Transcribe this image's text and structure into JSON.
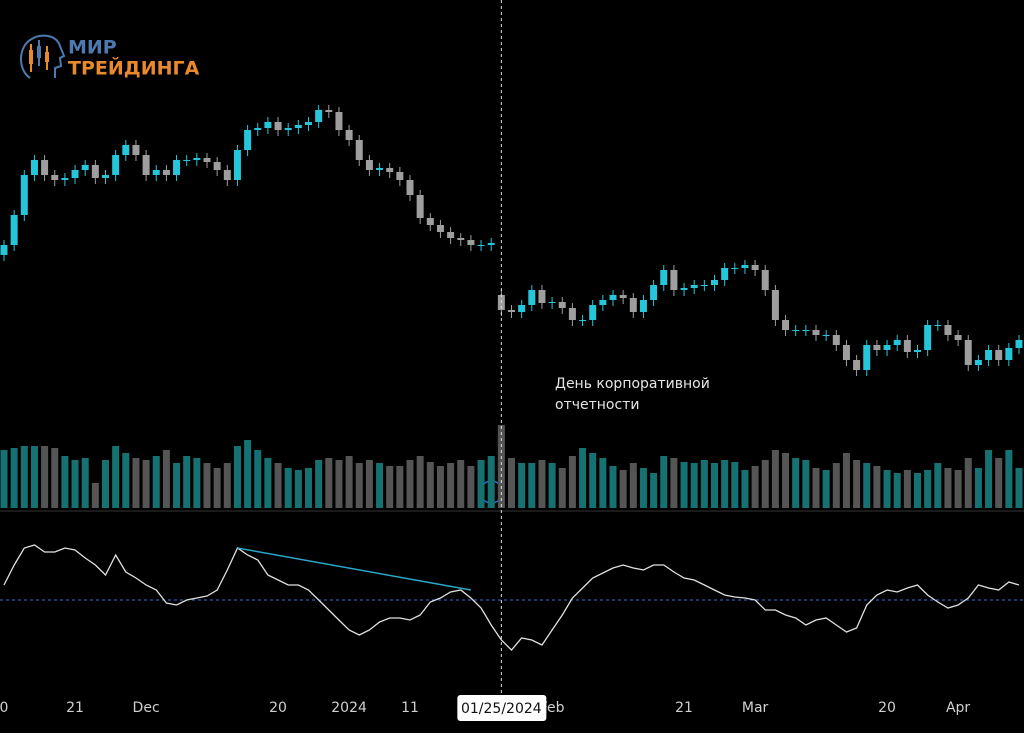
{
  "logo": {
    "line1": "МИР",
    "line2": "ТРЕЙДИНГА"
  },
  "chart_data": [
    {
      "type": "candlestick",
      "categories": [
        "0",
        null,
        null,
        null,
        null,
        null,
        null,
        "21",
        null,
        null,
        null,
        null,
        null,
        null,
        "Dec",
        null,
        null,
        null,
        null,
        null,
        null,
        null,
        null,
        null,
        null,
        null,
        null,
        "20",
        null,
        null,
        null,
        null,
        null,
        null,
        "2024",
        null,
        null,
        null,
        null,
        null,
        "11",
        null,
        null,
        null,
        null,
        null,
        null,
        null,
        null,
        null,
        null,
        null,
        null,
        null,
        "Feb",
        null,
        null,
        null,
        null,
        null,
        null,
        null,
        null,
        null,
        null,
        null,
        null,
        "21",
        null,
        null,
        null,
        null,
        null,
        null,
        "Mar",
        null,
        null,
        null,
        null,
        null,
        null,
        null,
        null,
        null,
        null,
        null,
        null,
        "20",
        null,
        null,
        null,
        null,
        null,
        null,
        "Apr",
        null,
        null,
        null,
        null,
        null,
        null
      ],
      "open": [
        205,
        215,
        245,
        285,
        300,
        285,
        280,
        282,
        290,
        295,
        282,
        285,
        305,
        315,
        305,
        285,
        290,
        285,
        300,
        300,
        302,
        298,
        290,
        280,
        310,
        330,
        332,
        338,
        330,
        332,
        335,
        338,
        350,
        348,
        330,
        320,
        300,
        290,
        292,
        288,
        280,
        265,
        242,
        235,
        228,
        222,
        220,
        215,
        215,
        165,
        150,
        148,
        155,
        170,
        157,
        158,
        152,
        140,
        140,
        155,
        160,
        165,
        162,
        148,
        160,
        175,
        190,
        170,
        172,
        175,
        175,
        180,
        192,
        192,
        195,
        190,
        170,
        140,
        130,
        130,
        130,
        125,
        125,
        115,
        100,
        90,
        115,
        110,
        115,
        120,
        108,
        110,
        135,
        135,
        125,
        120,
        95,
        100,
        110,
        100,
        112
      ],
      "high": [
        220,
        250,
        290,
        305,
        305,
        290,
        287,
        295,
        300,
        300,
        290,
        310,
        320,
        320,
        310,
        295,
        295,
        305,
        305,
        307,
        307,
        303,
        295,
        315,
        335,
        337,
        343,
        343,
        337,
        340,
        343,
        355,
        355,
        353,
        335,
        325,
        305,
        297,
        297,
        293,
        285,
        270,
        247,
        240,
        233,
        227,
        225,
        220,
        222,
        170,
        155,
        160,
        175,
        175,
        163,
        163,
        157,
        145,
        160,
        165,
        170,
        170,
        167,
        165,
        180,
        195,
        195,
        177,
        180,
        180,
        185,
        197,
        197,
        200,
        200,
        195,
        175,
        145,
        135,
        135,
        135,
        130,
        130,
        120,
        105,
        120,
        120,
        120,
        125,
        125,
        115,
        140,
        140,
        140,
        130,
        125,
        105,
        115,
        115,
        117,
        125
      ],
      "low": [
        199,
        209,
        239,
        279,
        279,
        274,
        274,
        276,
        284,
        276,
        276,
        279,
        299,
        299,
        279,
        279,
        279,
        279,
        294,
        294,
        292,
        284,
        274,
        274,
        304,
        324,
        326,
        324,
        324,
        326,
        329,
        332,
        342,
        324,
        314,
        294,
        284,
        284,
        282,
        274,
        259,
        236,
        229,
        222,
        216,
        214,
        209,
        209,
        209,
        144,
        142,
        142,
        149,
        151,
        151,
        146,
        134,
        134,
        134,
        149,
        154,
        156,
        142,
        142,
        154,
        169,
        164,
        164,
        166,
        169,
        169,
        174,
        186,
        186,
        184,
        164,
        134,
        124,
        124,
        124,
        119,
        119,
        109,
        94,
        84,
        84,
        104,
        104,
        109,
        102,
        102,
        104,
        129,
        119,
        114,
        89,
        89,
        94,
        94,
        94,
        106
      ],
      "close": [
        215,
        245,
        285,
        300,
        285,
        280,
        282,
        290,
        295,
        282,
        285,
        305,
        315,
        305,
        285,
        290,
        285,
        300,
        300,
        302,
        298,
        290,
        280,
        310,
        330,
        332,
        338,
        330,
        332,
        335,
        338,
        350,
        348,
        330,
        320,
        300,
        290,
        292,
        288,
        280,
        265,
        242,
        235,
        228,
        222,
        220,
        215,
        215,
        217,
        150,
        148,
        155,
        170,
        157,
        158,
        152,
        140,
        140,
        155,
        160,
        165,
        162,
        148,
        160,
        175,
        190,
        170,
        172,
        175,
        175,
        180,
        192,
        192,
        195,
        190,
        170,
        140,
        130,
        130,
        130,
        125,
        125,
        115,
        100,
        90,
        115,
        110,
        115,
        120,
        108,
        110,
        135,
        135,
        125,
        120,
        95,
        100,
        110,
        100,
        112,
        120
      ],
      "up_color": "#26c6da",
      "down_color": "#9e9e9e",
      "ylim": [
        60,
        380
      ],
      "crosshair": {
        "index": 49,
        "label": "01/25/2024"
      },
      "event_marker": {
        "index": 49,
        "label": "E"
      },
      "annotation": [
        "День корпоративной",
        "отчетности"
      ]
    },
    {
      "type": "bar",
      "values": [
        58,
        60,
        62,
        62,
        62,
        60,
        52,
        48,
        50,
        25,
        48,
        62,
        55,
        50,
        48,
        52,
        58,
        45,
        52,
        50,
        45,
        40,
        45,
        62,
        68,
        58,
        50,
        45,
        40,
        38,
        40,
        48,
        50,
        48,
        52,
        45,
        48,
        45,
        42,
        42,
        48,
        52,
        46,
        42,
        45,
        48,
        42,
        48,
        52,
        83,
        50,
        45,
        45,
        48,
        45,
        40,
        52,
        60,
        55,
        50,
        42,
        38,
        45,
        40,
        35,
        52,
        50,
        46,
        45,
        48,
        45,
        48,
        46,
        38,
        42,
        48,
        58,
        55,
        50,
        48,
        40,
        38,
        45,
        55,
        48,
        45,
        42,
        38,
        35,
        38,
        35,
        38,
        45,
        40,
        38,
        50,
        40,
        58,
        50,
        58,
        40
      ],
      "up_color": "#167272",
      "down_color": "#555555",
      "ylim": [
        0,
        100
      ]
    },
    {
      "type": "line",
      "values": [
        65,
        85,
        102,
        105,
        98,
        98,
        102,
        100,
        92,
        85,
        75,
        95,
        78,
        72,
        65,
        60,
        47,
        45,
        50,
        52,
        54,
        60,
        80,
        102,
        95,
        90,
        75,
        70,
        65,
        65,
        60,
        50,
        40,
        30,
        20,
        15,
        20,
        28,
        32,
        32,
        30,
        35,
        48,
        52,
        58,
        60,
        52,
        42,
        25,
        10,
        0,
        12,
        10,
        5,
        20,
        35,
        52,
        62,
        72,
        77,
        82,
        85,
        82,
        80,
        85,
        85,
        78,
        72,
        70,
        65,
        60,
        55,
        53,
        52,
        50,
        40,
        40,
        35,
        32,
        25,
        30,
        32,
        25,
        18,
        22,
        45,
        55,
        60,
        58,
        62,
        65,
        55,
        48,
        42,
        45,
        52,
        65,
        62,
        60,
        68,
        65
      ],
      "color": "#e0e0e0",
      "ylim": [
        -10,
        110
      ],
      "midline": 50,
      "midline_color": "#3b6fd6",
      "trendline": {
        "x": [
          23,
          46
        ],
        "values": [
          102,
          60
        ],
        "color": "#2aa7c9"
      }
    }
  ]
}
